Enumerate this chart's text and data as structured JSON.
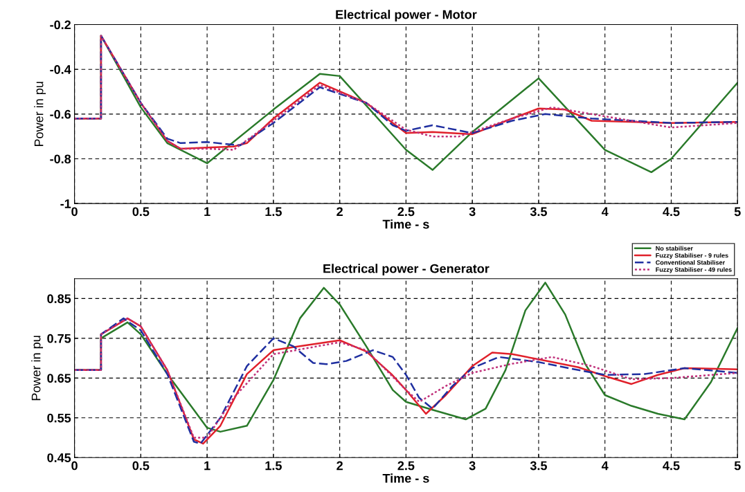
{
  "chart_data": [
    {
      "type": "line",
      "title": "Electrical power - Motor",
      "xlabel": "Time - s",
      "ylabel": "Power in pu",
      "xlim": [
        0,
        5
      ],
      "xticks": [
        0,
        0.5,
        1,
        1.5,
        2,
        2.5,
        3,
        3.5,
        4,
        4.5,
        5
      ],
      "ylim": [
        -1,
        -0.2
      ],
      "yticks": [
        -1,
        -0.8,
        -0.6,
        -0.4,
        -0.2
      ],
      "grid": true,
      "series": [
        {
          "color": "#2a7a2a",
          "line_style": "solid",
          "x": [
            0,
            0.2,
            0.2,
            0.5,
            0.7,
            1.0,
            1.5,
            1.85,
            2.0,
            2.5,
            2.7,
            3.0,
            3.5,
            4.0,
            4.35,
            4.5,
            5.0
          ],
          "values": [
            -0.62,
            -0.62,
            -0.25,
            -0.57,
            -0.73,
            -0.82,
            -0.58,
            -0.42,
            -0.43,
            -0.76,
            -0.85,
            -0.68,
            -0.44,
            -0.76,
            -0.86,
            -0.8,
            -0.46
          ]
        },
        {
          "color": "#e0202a",
          "line_style": "solid",
          "x": [
            0,
            0.2,
            0.2,
            0.5,
            0.7,
            0.8,
            1.0,
            1.2,
            1.3,
            1.5,
            1.85,
            2.2,
            2.5,
            2.7,
            3.0,
            3.3,
            3.5,
            3.7,
            3.9,
            4.5,
            5.0
          ],
          "values": [
            -0.62,
            -0.62,
            -0.25,
            -0.55,
            -0.72,
            -0.755,
            -0.75,
            -0.745,
            -0.73,
            -0.62,
            -0.46,
            -0.55,
            -0.685,
            -0.68,
            -0.69,
            -0.62,
            -0.575,
            -0.58,
            -0.63,
            -0.64,
            -0.635
          ]
        },
        {
          "color": "#1f2fa0",
          "line_style": "dashed",
          "x": [
            0,
            0.2,
            0.2,
            0.5,
            0.7,
            0.8,
            1.0,
            1.25,
            1.5,
            1.85,
            2.2,
            2.4,
            2.5,
            2.7,
            3.0,
            3.3,
            3.55,
            3.9,
            4.5,
            5.0
          ],
          "values": [
            -0.62,
            -0.62,
            -0.25,
            -0.55,
            -0.71,
            -0.73,
            -0.725,
            -0.74,
            -0.64,
            -0.48,
            -0.55,
            -0.65,
            -0.675,
            -0.65,
            -0.685,
            -0.63,
            -0.6,
            -0.62,
            -0.64,
            -0.635
          ]
        },
        {
          "color": "#c0307a",
          "line_style": "dotted",
          "x": [
            0,
            0.2,
            0.2,
            0.5,
            0.7,
            0.8,
            1.0,
            1.2,
            1.5,
            1.85,
            2.2,
            2.5,
            2.7,
            2.9,
            3.3,
            3.6,
            4.0,
            4.5,
            5.0
          ],
          "values": [
            -0.62,
            -0.62,
            -0.25,
            -0.55,
            -0.72,
            -0.755,
            -0.755,
            -0.76,
            -0.63,
            -0.47,
            -0.55,
            -0.67,
            -0.7,
            -0.7,
            -0.62,
            -0.57,
            -0.61,
            -0.66,
            -0.64
          ]
        }
      ]
    },
    {
      "type": "line",
      "title": "Electrical power - Generator",
      "xlabel": "Time - s",
      "ylabel": "Power in pu",
      "xlim": [
        0,
        5
      ],
      "xticks": [
        0,
        0.5,
        1,
        1.5,
        2,
        2.5,
        3,
        3.5,
        4,
        4.5,
        5
      ],
      "ylim": [
        0.45,
        0.9
      ],
      "yticks": [
        0.45,
        0.55,
        0.65,
        0.75,
        0.85
      ],
      "grid": true,
      "legend": "top right",
      "series": [
        {
          "name": "No stabiliser",
          "color": "#2a7a2a",
          "line_style": "solid",
          "x": [
            0,
            0.2,
            0.2,
            0.4,
            0.5,
            0.7,
            0.9,
            1.0,
            1.1,
            1.3,
            1.5,
            1.7,
            1.88,
            2.0,
            2.2,
            2.4,
            2.5,
            2.7,
            2.95,
            3.1,
            3.25,
            3.4,
            3.55,
            3.7,
            3.85,
            4.0,
            4.2,
            4.4,
            4.6,
            4.8,
            5.0
          ],
          "values": [
            0.67,
            0.67,
            0.75,
            0.79,
            0.76,
            0.66,
            0.57,
            0.525,
            0.515,
            0.53,
            0.645,
            0.8,
            0.877,
            0.835,
            0.73,
            0.62,
            0.59,
            0.57,
            0.546,
            0.573,
            0.67,
            0.82,
            0.89,
            0.81,
            0.686,
            0.607,
            0.58,
            0.56,
            0.546,
            0.64,
            0.776
          ]
        },
        {
          "name": "Fuzzy Stabiliser - 9 rules",
          "color": "#e0202a",
          "line_style": "solid",
          "x": [
            0,
            0.2,
            0.2,
            0.4,
            0.5,
            0.7,
            0.9,
            0.97,
            1.1,
            1.3,
            1.5,
            1.7,
            2.0,
            2.2,
            2.39,
            2.5,
            2.65,
            2.8,
            3.0,
            3.15,
            3.3,
            3.5,
            3.8,
            4.0,
            4.2,
            4.4,
            4.6,
            5.0
          ],
          "values": [
            0.67,
            0.67,
            0.76,
            0.8,
            0.78,
            0.67,
            0.496,
            0.485,
            0.53,
            0.66,
            0.72,
            0.73,
            0.745,
            0.717,
            0.66,
            0.62,
            0.56,
            0.607,
            0.68,
            0.714,
            0.71,
            0.697,
            0.677,
            0.655,
            0.635,
            0.658,
            0.675,
            0.672
          ]
        },
        {
          "name": "Conventional Stabiliser",
          "color": "#1f2fa0",
          "line_style": "dashed",
          "x": [
            0,
            0.2,
            0.2,
            0.37,
            0.5,
            0.7,
            0.9,
            0.95,
            1.1,
            1.3,
            1.5,
            1.65,
            1.8,
            1.9,
            2.05,
            2.25,
            2.4,
            2.5,
            2.6,
            2.7,
            2.85,
            3.0,
            3.2,
            3.5,
            3.8,
            4.0,
            4.3,
            4.6,
            5.0
          ],
          "values": [
            0.67,
            0.67,
            0.76,
            0.8,
            0.77,
            0.66,
            0.49,
            0.485,
            0.55,
            0.68,
            0.75,
            0.73,
            0.688,
            0.685,
            0.693,
            0.72,
            0.703,
            0.658,
            0.6,
            0.573,
            0.63,
            0.675,
            0.703,
            0.69,
            0.67,
            0.658,
            0.66,
            0.675,
            0.663
          ]
        },
        {
          "name": "Fuzzy Stabiliser - 49 rules",
          "color": "#c0307a",
          "line_style": "dotted",
          "x": [
            0,
            0.2,
            0.2,
            0.4,
            0.5,
            0.7,
            0.9,
            1.0,
            1.2,
            1.5,
            2.0,
            2.2,
            2.5,
            2.6,
            2.8,
            3.0,
            3.3,
            3.6,
            3.9,
            4.2,
            4.5,
            5.0
          ],
          "values": [
            0.67,
            0.67,
            0.76,
            0.8,
            0.78,
            0.67,
            0.5,
            0.5,
            0.6,
            0.71,
            0.74,
            0.72,
            0.62,
            0.59,
            0.63,
            0.663,
            0.686,
            0.703,
            0.68,
            0.647,
            0.65,
            0.663
          ]
        }
      ]
    }
  ]
}
